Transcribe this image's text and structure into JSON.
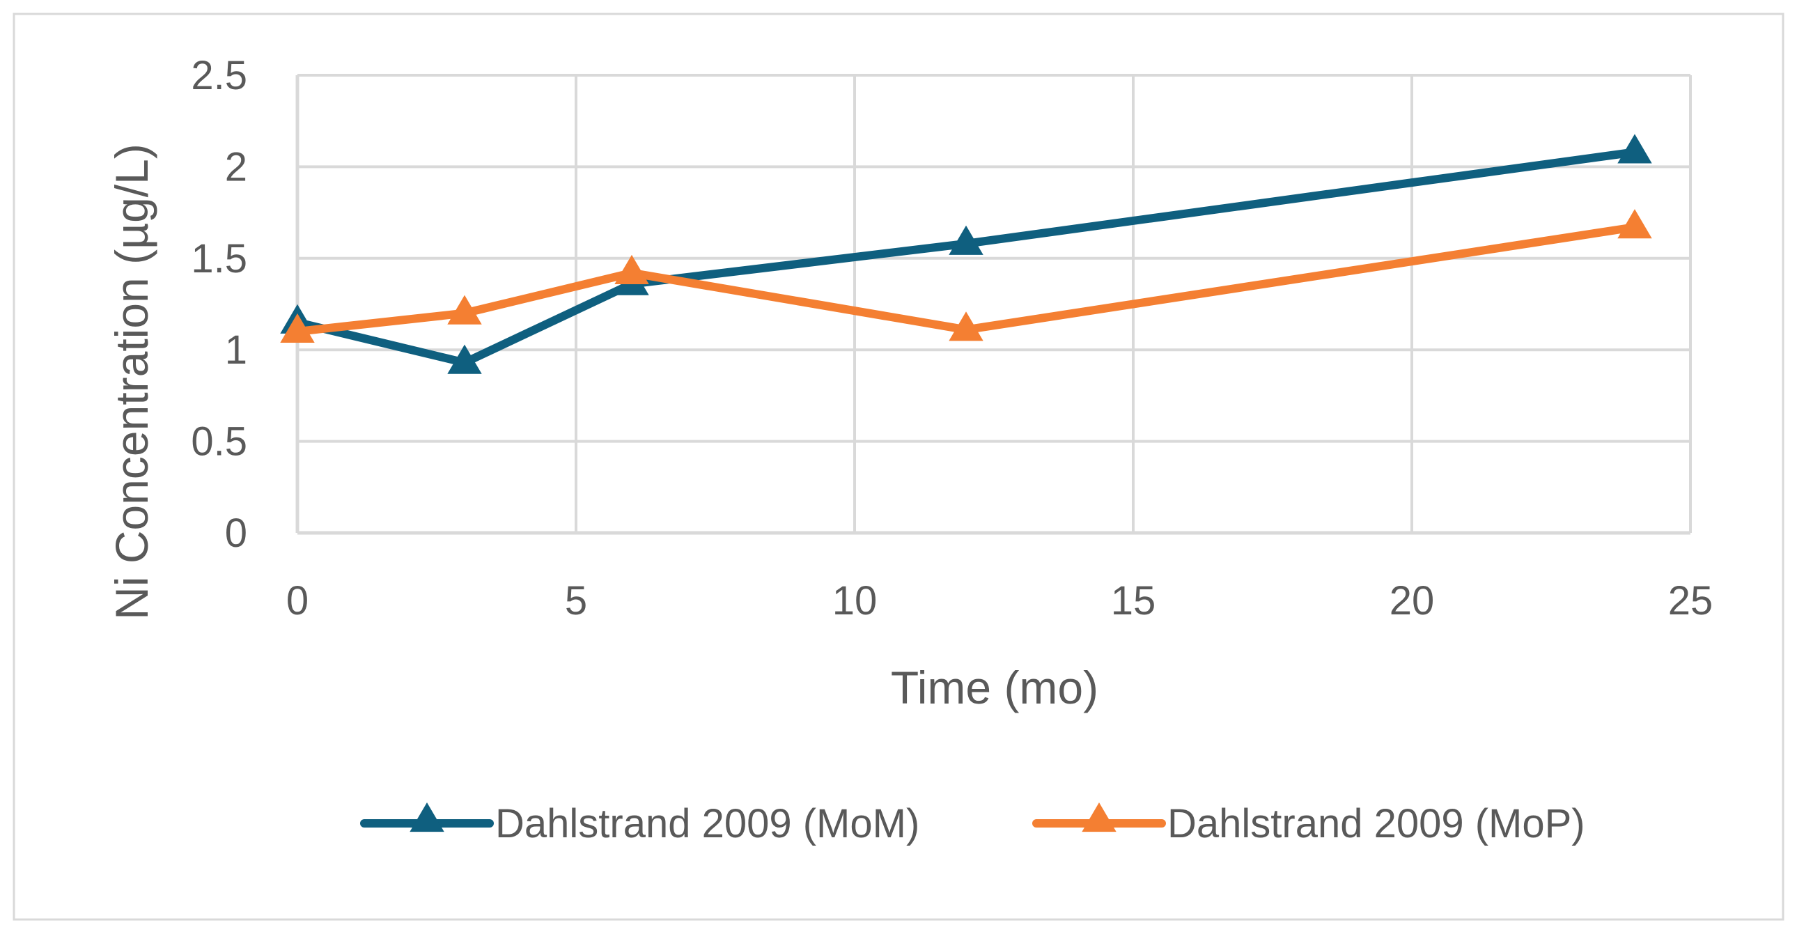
{
  "chart_data": {
    "type": "line",
    "title": "",
    "xlabel": "Time (mo)",
    "ylabel": "Ni Concentration (µg/L)",
    "xlim": [
      0,
      25
    ],
    "ylim": [
      0,
      2.5
    ],
    "x_ticks": [
      "0",
      "5",
      "10",
      "15",
      "20",
      "25"
    ],
    "y_ticks": [
      "0",
      "0.5",
      "1",
      "1.5",
      "2",
      "2.5"
    ],
    "grid": true,
    "legend_position": "bottom",
    "marker": "triangle",
    "series": [
      {
        "name": "Dahlstrand 2009 (MoM)",
        "color": "#0f5f7f",
        "x": [
          0,
          3,
          6,
          12,
          24
        ],
        "y": [
          1.15,
          0.93,
          1.36,
          1.58,
          2.08
        ]
      },
      {
        "name": "Dahlstrand 2009 (MoP)",
        "color": "#f47f32",
        "x": [
          0,
          3,
          6,
          12,
          24
        ],
        "y": [
          1.1,
          1.2,
          1.42,
          1.11,
          1.67
        ]
      }
    ]
  }
}
